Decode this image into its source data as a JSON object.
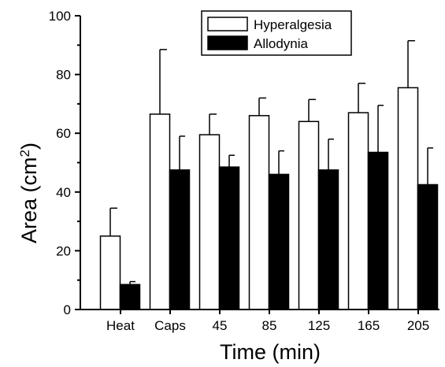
{
  "chart_data": {
    "type": "bar",
    "title": "",
    "xlabel": "Time (min)",
    "ylabel_prefix": "Area (cm",
    "ylabel_sup": "2",
    "ylabel_suffix": ")",
    "ylim": [
      0,
      100
    ],
    "yticks": [
      0,
      20,
      40,
      60,
      80,
      100
    ],
    "categories": [
      "Heat",
      "Caps",
      "45",
      "85",
      "125",
      "165",
      "205"
    ],
    "legend_position": "top-right",
    "series": [
      {
        "name": "Hyperalgesia",
        "fill": "#ffffff",
        "values": [
          25,
          66.5,
          59.5,
          66,
          64,
          67,
          75.5
        ],
        "errors": [
          9.5,
          22,
          7,
          6,
          7.5,
          10,
          16
        ]
      },
      {
        "name": "Allodynia",
        "fill": "#000000",
        "values": [
          8.5,
          47.5,
          48.5,
          46,
          47.5,
          53.5,
          42.5
        ],
        "errors": [
          1,
          11.5,
          4,
          8,
          10.5,
          16,
          12.5
        ]
      }
    ]
  }
}
